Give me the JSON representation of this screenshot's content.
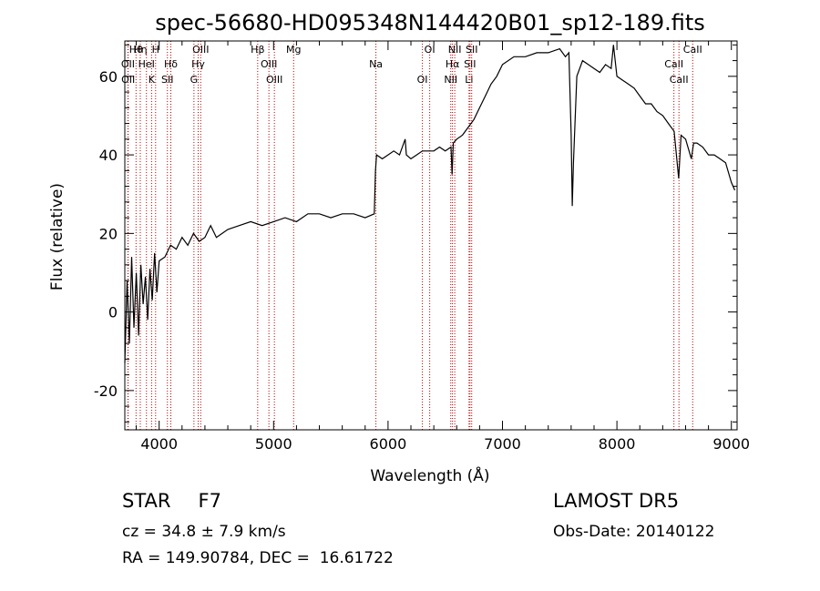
{
  "chart_data": {
    "type": "line",
    "title": "spec-56680-HD095348N144420B01_sp12-189.fits",
    "xlabel": "Wavelength (Å)",
    "ylabel": "Flux (relative)",
    "xlim": [
      3700,
      9050
    ],
    "ylim": [
      -30,
      69
    ],
    "xticks": [
      4000,
      5000,
      6000,
      7000,
      8000,
      9000
    ],
    "yticks": [
      -20,
      0,
      20,
      40,
      60
    ],
    "grid": false,
    "series": [
      {
        "color": "#000000",
        "points": [
          [
            3700,
            -13
          ],
          [
            3720,
            8
          ],
          [
            3740,
            -8
          ],
          [
            3760,
            14
          ],
          [
            3780,
            -4
          ],
          [
            3800,
            10
          ],
          [
            3820,
            -6
          ],
          [
            3840,
            12
          ],
          [
            3860,
            2
          ],
          [
            3880,
            9
          ],
          [
            3900,
            -2
          ],
          [
            3920,
            11
          ],
          [
            3940,
            3
          ],
          [
            3960,
            15
          ],
          [
            3980,
            5
          ],
          [
            4000,
            13
          ],
          [
            4050,
            14
          ],
          [
            4100,
            17
          ],
          [
            4150,
            16
          ],
          [
            4200,
            19
          ],
          [
            4250,
            17
          ],
          [
            4300,
            20
          ],
          [
            4350,
            18
          ],
          [
            4400,
            19
          ],
          [
            4450,
            22
          ],
          [
            4500,
            19
          ],
          [
            4600,
            21
          ],
          [
            4700,
            22
          ],
          [
            4800,
            23
          ],
          [
            4900,
            22
          ],
          [
            5000,
            23
          ],
          [
            5100,
            24
          ],
          [
            5200,
            23
          ],
          [
            5300,
            25
          ],
          [
            5400,
            25
          ],
          [
            5500,
            24
          ],
          [
            5600,
            25
          ],
          [
            5700,
            25
          ],
          [
            5800,
            24
          ],
          [
            5880,
            25
          ],
          [
            5890,
            36
          ],
          [
            5900,
            40
          ],
          [
            5950,
            39
          ],
          [
            6000,
            40
          ],
          [
            6050,
            41
          ],
          [
            6100,
            40
          ],
          [
            6150,
            44
          ],
          [
            6160,
            40
          ],
          [
            6200,
            39
          ],
          [
            6250,
            40
          ],
          [
            6300,
            41
          ],
          [
            6400,
            41
          ],
          [
            6450,
            42
          ],
          [
            6500,
            41
          ],
          [
            6550,
            42
          ],
          [
            6560,
            35
          ],
          [
            6570,
            43
          ],
          [
            6600,
            44
          ],
          [
            6650,
            45
          ],
          [
            6700,
            47
          ],
          [
            6750,
            49
          ],
          [
            6800,
            52
          ],
          [
            6850,
            55
          ],
          [
            6900,
            58
          ],
          [
            6950,
            60
          ],
          [
            7000,
            63
          ],
          [
            7100,
            65
          ],
          [
            7200,
            65
          ],
          [
            7300,
            66
          ],
          [
            7400,
            66
          ],
          [
            7500,
            67
          ],
          [
            7550,
            65
          ],
          [
            7580,
            66
          ],
          [
            7600,
            45
          ],
          [
            7610,
            27
          ],
          [
            7620,
            38
          ],
          [
            7650,
            60
          ],
          [
            7700,
            64
          ],
          [
            7750,
            63
          ],
          [
            7800,
            62
          ],
          [
            7850,
            61
          ],
          [
            7900,
            63
          ],
          [
            7950,
            62
          ],
          [
            7970,
            68
          ],
          [
            8000,
            60
          ],
          [
            8050,
            59
          ],
          [
            8100,
            58
          ],
          [
            8150,
            57
          ],
          [
            8200,
            55
          ],
          [
            8250,
            53
          ],
          [
            8300,
            53
          ],
          [
            8350,
            51
          ],
          [
            8400,
            50
          ],
          [
            8450,
            48
          ],
          [
            8500,
            46
          ],
          [
            8540,
            34
          ],
          [
            8560,
            45
          ],
          [
            8600,
            44
          ],
          [
            8650,
            39
          ],
          [
            8670,
            43
          ],
          [
            8700,
            43
          ],
          [
            8750,
            42
          ],
          [
            8800,
            40
          ],
          [
            8850,
            40
          ],
          [
            8900,
            39
          ],
          [
            8950,
            38
          ],
          [
            9000,
            33
          ],
          [
            9030,
            31
          ]
        ]
      }
    ],
    "line_marks": [
      {
        "label": "Hθ",
        "wavelength": 3798
      },
      {
        "label": "OII",
        "wavelength": 3727
      },
      {
        "label": "OII",
        "wavelength": 3729
      },
      {
        "label": "Hη",
        "wavelength": 3835
      },
      {
        "label": "HeI",
        "wavelength": 3889
      },
      {
        "label": "K",
        "wavelength": 3934
      },
      {
        "label": "H",
        "wavelength": 3969
      },
      {
        "label": "Hδ",
        "wavelength": 4102
      },
      {
        "label": "SII",
        "wavelength": 4072
      },
      {
        "label": "OIII",
        "wavelength": 4363
      },
      {
        "label": "Hγ",
        "wavelength": 4341
      },
      {
        "label": "G",
        "wavelength": 4304
      },
      {
        "label": "Hβ",
        "wavelength": 4861
      },
      {
        "label": "OIII",
        "wavelength": 4959
      },
      {
        "label": "OIII",
        "wavelength": 5007
      },
      {
        "label": "Mg",
        "wavelength": 5175
      },
      {
        "label": "Na",
        "wavelength": 5894
      },
      {
        "label": "OI",
        "wavelength": 6300
      },
      {
        "label": "OI",
        "wavelength": 6364
      },
      {
        "label": "Hα",
        "wavelength": 6563
      },
      {
        "label": "NII",
        "wavelength": 6548
      },
      {
        "label": "NII",
        "wavelength": 6583
      },
      {
        "label": "SII",
        "wavelength": 6716
      },
      {
        "label": "Li",
        "wavelength": 6708
      },
      {
        "label": "SII",
        "wavelength": 6731
      },
      {
        "label": "CaII",
        "wavelength": 8498
      },
      {
        "label": "CaII",
        "wavelength": 8542
      },
      {
        "label": "CaII",
        "wavelength": 8662
      }
    ]
  },
  "info": {
    "class": "STAR",
    "subclass": "F7",
    "survey": "LAMOST DR5",
    "cz": "cz = 34.8 ± 7.9 km/s",
    "obs_date": "Obs-Date: 20140122",
    "radec": "RA = 149.90784, DEC =  16.61722"
  }
}
